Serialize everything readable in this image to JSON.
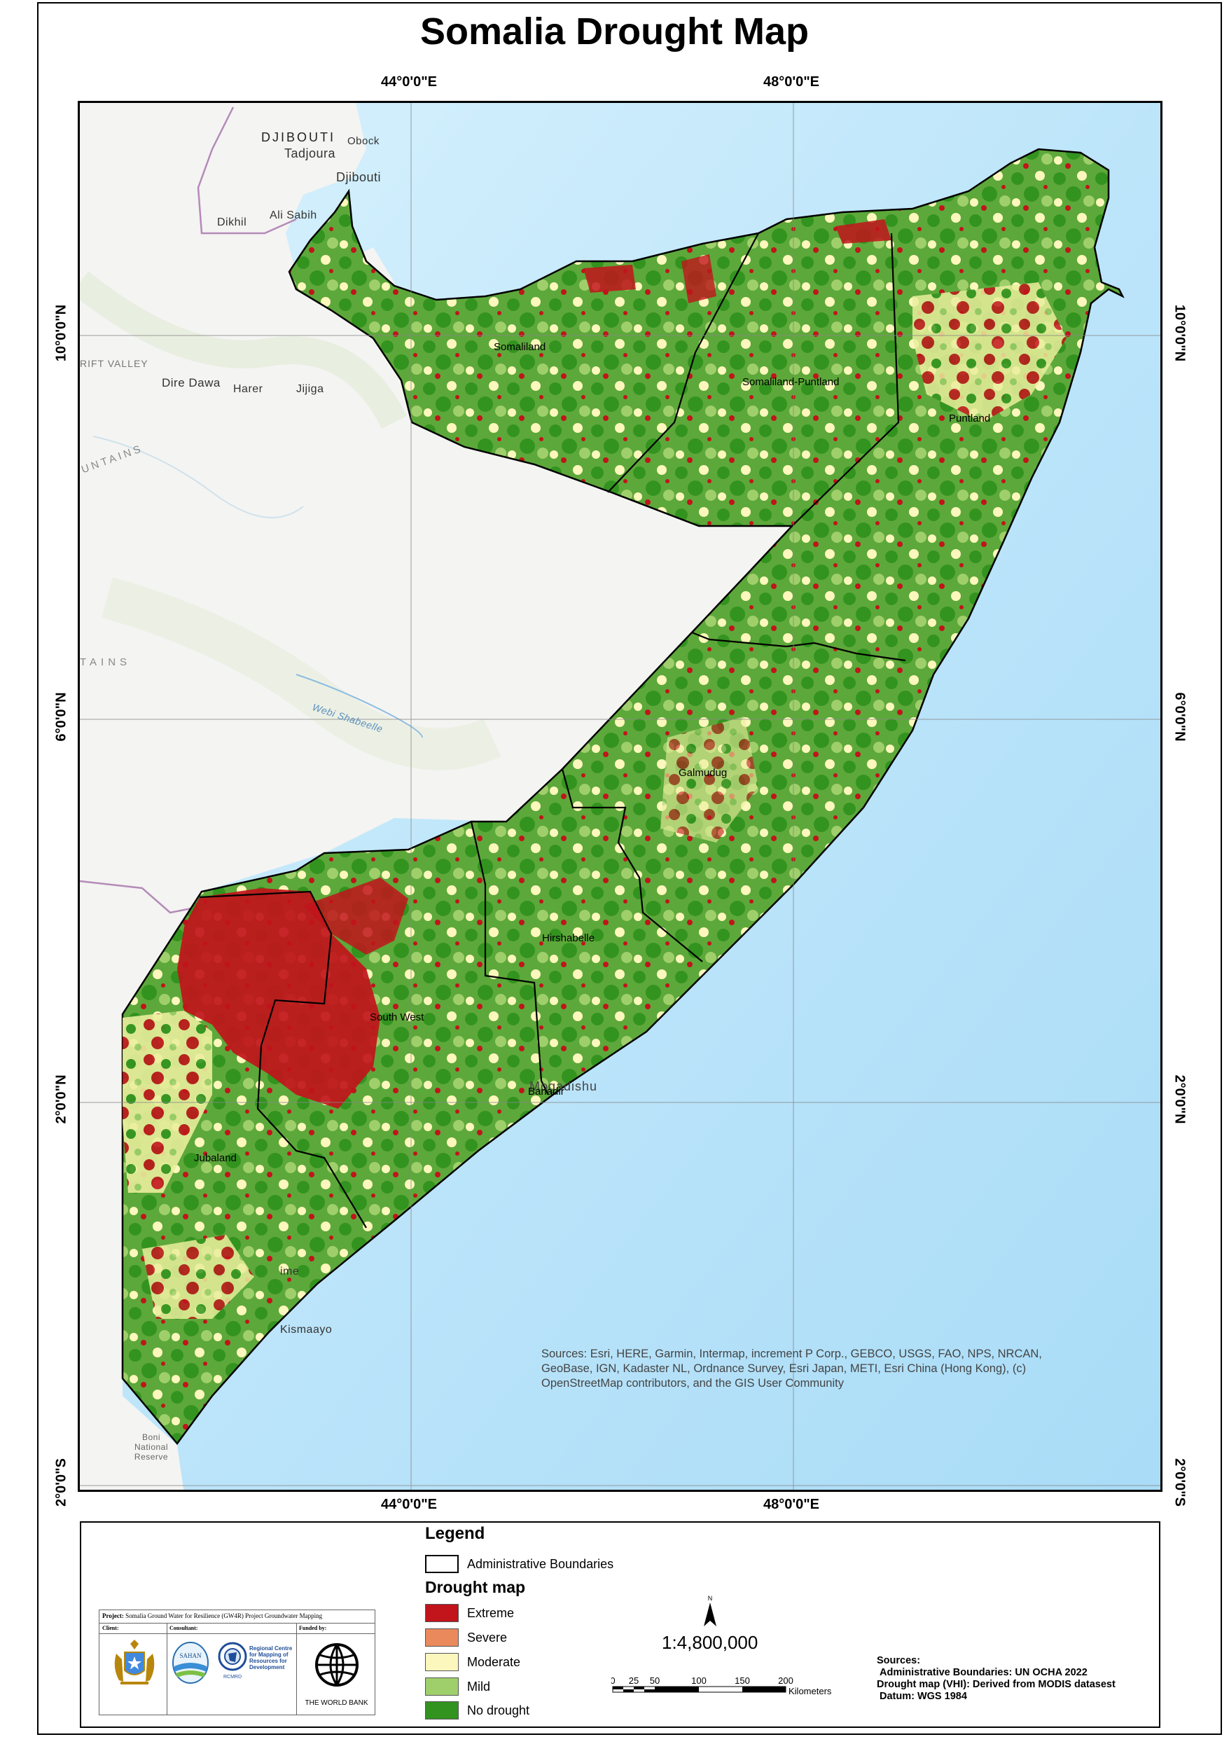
{
  "title": "Somalia Drought Map",
  "graticule": {
    "top_labels": [
      "44°0'0\"E",
      "48°0'0\"E"
    ],
    "bottom_labels": [
      "44°0'0\"E",
      "48°0'0\"E"
    ],
    "left_labels": [
      "10°0'0\"N",
      "6°0'0\"N",
      "2°0'0\"N",
      "2°0'0\"S"
    ],
    "right_labels": [
      "10°0'0\"N",
      "6°0'0\"N",
      "2°0'0\"N",
      "2°0'0\"S"
    ]
  },
  "basemap_places": {
    "djibouti_country": "DJIBOUTI",
    "tadjoura": "Tadjoura",
    "obock": "Obock",
    "djibouti_city": "Djibouti",
    "dikhil": "Dikhil",
    "ali_sabih": "Ali Sabih",
    "rift_valley": "RIFT VALLEY",
    "dire_dawa": "Dire Dawa",
    "harer": "Harer",
    "jijiga": "Jijiga",
    "untains": "UNTAINS",
    "tains": "TAINS",
    "webi_shabeelle": "Webi Shabeelle",
    "mogadishu": "Mogadishu",
    "kismaayo": "Kismaayo",
    "jilib_partial": "ime",
    "boni": "Boni National Reserve"
  },
  "regions": {
    "somaliland": "Somaliland",
    "somaliland_puntland": "Somaliland-Puntland",
    "puntland": "Puntland",
    "galmudug": "Galmudug",
    "hirshabelle": "Hirshabelle",
    "south_west": "South West",
    "banadir": "Banadir",
    "jubaland": "Jubaland"
  },
  "attribution": "Sources: Esri, HERE, Garmin, Intermap, increment P Corp., GEBCO, USGS, FAO, NPS, NRCAN, GeoBase, IGN, Kadaster NL, Ordnance Survey, Esri Japan, METI, Esri China (Hong Kong), (c) OpenStreetMap contributors, and the GIS User Community",
  "legend": {
    "title": "Legend",
    "admin_label": "Administrative Boundaries",
    "drought_title": "Drought map",
    "classes": [
      {
        "label": "Extreme",
        "color": "#c1141b"
      },
      {
        "label": "Severe",
        "color": "#ea8a5c"
      },
      {
        "label": "Moderate",
        "color": "#fcf7bd"
      },
      {
        "label": "Mild",
        "color": "#9fcf6b"
      },
      {
        "label": "No drought",
        "color": "#33931f"
      }
    ]
  },
  "north_arrow": "N",
  "scale": {
    "ratio": "1:4,800,000",
    "ticks": [
      "0",
      "25",
      "50",
      "100",
      "150",
      "200"
    ],
    "unit": "Kilometers"
  },
  "sources_block": {
    "heading": "Sources:",
    "line1": "Administrative Boundaries: UN OCHA 2022",
    "line2": "Drought map (VHI): Derived from MODIS datasest",
    "line3": "Datum: WGS 1984"
  },
  "logo_panel": {
    "project_label": "Project:",
    "project_text": "Somalia Ground Water for Resilience (GW4R) Project Groundwater Mapping",
    "client": "Client:",
    "consultant": "Consultant:",
    "funded_by": "Funded by:",
    "sahan": "SAHAN",
    "rcmrd_name": "Regional Centre for Mapping of Resources for Development",
    "rcmrd_short": "RCMRD",
    "world_bank": "THE WORLD BANK"
  },
  "colors": {
    "ocean": "#bfe6fb",
    "land": "#f4f4f2",
    "boundary": "#000000"
  }
}
